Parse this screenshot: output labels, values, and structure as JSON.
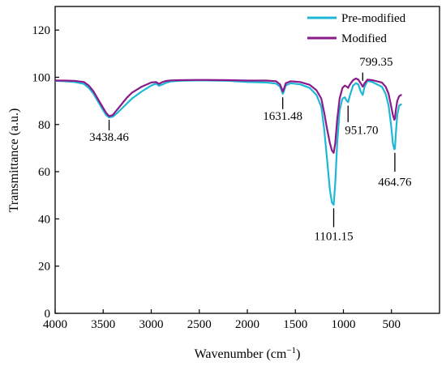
{
  "chart_data": {
    "type": "line",
    "xlabel": "Wavenumber (cm",
    "xlabel_superscript": "−1",
    "xlabel_suffix": ")",
    "ylabel": "Transmittance (a.u.)",
    "xlim": [
      4000,
      0
    ],
    "ylim": [
      0,
      130
    ],
    "x_ticks": [
      4000,
      3500,
      3000,
      2500,
      2000,
      1500,
      1000,
      500
    ],
    "y_ticks": [
      0,
      20,
      40,
      60,
      80,
      100,
      120
    ],
    "grid": false,
    "legend_position": "top-right",
    "series": [
      {
        "name": "Pre-modified",
        "color": "#1fb7d6",
        "points": [
          [
            4000,
            98.5
          ],
          [
            3900,
            98.3
          ],
          [
            3800,
            98.0
          ],
          [
            3700,
            97.2
          ],
          [
            3650,
            95.5
          ],
          [
            3600,
            93.0
          ],
          [
            3550,
            89.5
          ],
          [
            3500,
            86.0
          ],
          [
            3470,
            84.0
          ],
          [
            3438,
            83.0
          ],
          [
            3400,
            83.3
          ],
          [
            3350,
            85.0
          ],
          [
            3300,
            87.0
          ],
          [
            3250,
            89.0
          ],
          [
            3200,
            91.0
          ],
          [
            3100,
            94.0
          ],
          [
            3000,
            96.5
          ],
          [
            2950,
            97.3
          ],
          [
            2920,
            96.4
          ],
          [
            2880,
            97.0
          ],
          [
            2850,
            97.6
          ],
          [
            2800,
            98.2
          ],
          [
            2700,
            98.5
          ],
          [
            2500,
            98.7
          ],
          [
            2200,
            98.5
          ],
          [
            2000,
            98.0
          ],
          [
            1800,
            97.8
          ],
          [
            1700,
            97.3
          ],
          [
            1660,
            96.0
          ],
          [
            1640,
            94.0
          ],
          [
            1631,
            93.0
          ],
          [
            1620,
            94.0
          ],
          [
            1600,
            96.5
          ],
          [
            1550,
            97.5
          ],
          [
            1450,
            97.0
          ],
          [
            1350,
            95.5
          ],
          [
            1280,
            92.5
          ],
          [
            1230,
            87.5
          ],
          [
            1200,
            78.0
          ],
          [
            1170,
            65.0
          ],
          [
            1140,
            52.0
          ],
          [
            1120,
            47.0
          ],
          [
            1101,
            46.0
          ],
          [
            1085,
            55.0
          ],
          [
            1065,
            72.0
          ],
          [
            1040,
            86.0
          ],
          [
            1010,
            91.0
          ],
          [
            985,
            91.5
          ],
          [
            965,
            90.0
          ],
          [
            951,
            89.5
          ],
          [
            935,
            92.0
          ],
          [
            900,
            96.5
          ],
          [
            870,
            97.5
          ],
          [
            845,
            97.0
          ],
          [
            820,
            94.0
          ],
          [
            799,
            92.5
          ],
          [
            780,
            96.0
          ],
          [
            750,
            98.5
          ],
          [
            700,
            98.0
          ],
          [
            650,
            97.0
          ],
          [
            600,
            96.0
          ],
          [
            560,
            93.0
          ],
          [
            530,
            88.0
          ],
          [
            505,
            80.0
          ],
          [
            485,
            72.0
          ],
          [
            470,
            69.5
          ],
          [
            464,
            69.8
          ],
          [
            455,
            76.0
          ],
          [
            440,
            84.0
          ],
          [
            420,
            88.0
          ],
          [
            400,
            88.5
          ]
        ]
      },
      {
        "name": "Modified",
        "color": "#8b1a8b",
        "points": [
          [
            4000,
            98.6
          ],
          [
            3900,
            98.6
          ],
          [
            3800,
            98.5
          ],
          [
            3700,
            98.0
          ],
          [
            3650,
            96.5
          ],
          [
            3600,
            94.0
          ],
          [
            3550,
            90.5
          ],
          [
            3500,
            87.0
          ],
          [
            3470,
            85.0
          ],
          [
            3438,
            83.5
          ],
          [
            3400,
            84.0
          ],
          [
            3350,
            86.5
          ],
          [
            3300,
            89.0
          ],
          [
            3250,
            91.5
          ],
          [
            3200,
            93.5
          ],
          [
            3100,
            96.0
          ],
          [
            3000,
            97.8
          ],
          [
            2950,
            98.0
          ],
          [
            2920,
            97.2
          ],
          [
            2880,
            98.0
          ],
          [
            2850,
            98.4
          ],
          [
            2800,
            98.7
          ],
          [
            2700,
            98.8
          ],
          [
            2500,
            98.9
          ],
          [
            2200,
            98.8
          ],
          [
            2000,
            98.6
          ],
          [
            1800,
            98.6
          ],
          [
            1700,
            98.3
          ],
          [
            1660,
            97.0
          ],
          [
            1640,
            95.0
          ],
          [
            1631,
            94.0
          ],
          [
            1620,
            95.0
          ],
          [
            1600,
            97.5
          ],
          [
            1550,
            98.3
          ],
          [
            1450,
            98.0
          ],
          [
            1350,
            96.8
          ],
          [
            1280,
            94.5
          ],
          [
            1230,
            91.0
          ],
          [
            1200,
            85.0
          ],
          [
            1170,
            78.0
          ],
          [
            1140,
            72.0
          ],
          [
            1120,
            69.0
          ],
          [
            1101,
            68.0
          ],
          [
            1085,
            72.0
          ],
          [
            1065,
            82.0
          ],
          [
            1040,
            91.0
          ],
          [
            1010,
            95.5
          ],
          [
            985,
            96.5
          ],
          [
            965,
            96.0
          ],
          [
            951,
            95.5
          ],
          [
            935,
            96.8
          ],
          [
            900,
            98.8
          ],
          [
            870,
            99.5
          ],
          [
            845,
            99.0
          ],
          [
            820,
            97.5
          ],
          [
            799,
            96.0
          ],
          [
            780,
            97.5
          ],
          [
            750,
            99.0
          ],
          [
            700,
            98.8
          ],
          [
            650,
            98.3
          ],
          [
            600,
            97.8
          ],
          [
            560,
            96.0
          ],
          [
            530,
            93.0
          ],
          [
            505,
            88.0
          ],
          [
            485,
            84.0
          ],
          [
            470,
            82.0
          ],
          [
            464,
            82.5
          ],
          [
            455,
            86.0
          ],
          [
            440,
            90.0
          ],
          [
            420,
            92.0
          ],
          [
            400,
            92.5
          ]
        ]
      }
    ],
    "annotations": [
      {
        "label": "3438.46",
        "x": 3438.46,
        "line_from": 82.0,
        "line_to": 77.5,
        "text_y": 73.0,
        "anchor": "middle"
      },
      {
        "label": "1631.48",
        "x": 1631.48,
        "line_from": 91.5,
        "line_to": 86.5,
        "text_y": 82.0,
        "anchor": "middle"
      },
      {
        "label": "1101.15",
        "x": 1101.15,
        "line_from": 44.5,
        "line_to": 36.5,
        "text_y": 31.0,
        "anchor": "middle"
      },
      {
        "label": "951.70",
        "x": 951.7,
        "line_from": 88.0,
        "line_to": 81.0,
        "text_y": 76.0,
        "anchor": "start"
      },
      {
        "label": "799.35",
        "x": 799.35,
        "line_from": 98.5,
        "line_to": 102.0,
        "text_y": 105.0,
        "anchor": "start"
      },
      {
        "label": "464.76",
        "x": 464.76,
        "line_from": 68.0,
        "line_to": 60.0,
        "text_y": 54.0,
        "anchor": "middle"
      }
    ]
  }
}
